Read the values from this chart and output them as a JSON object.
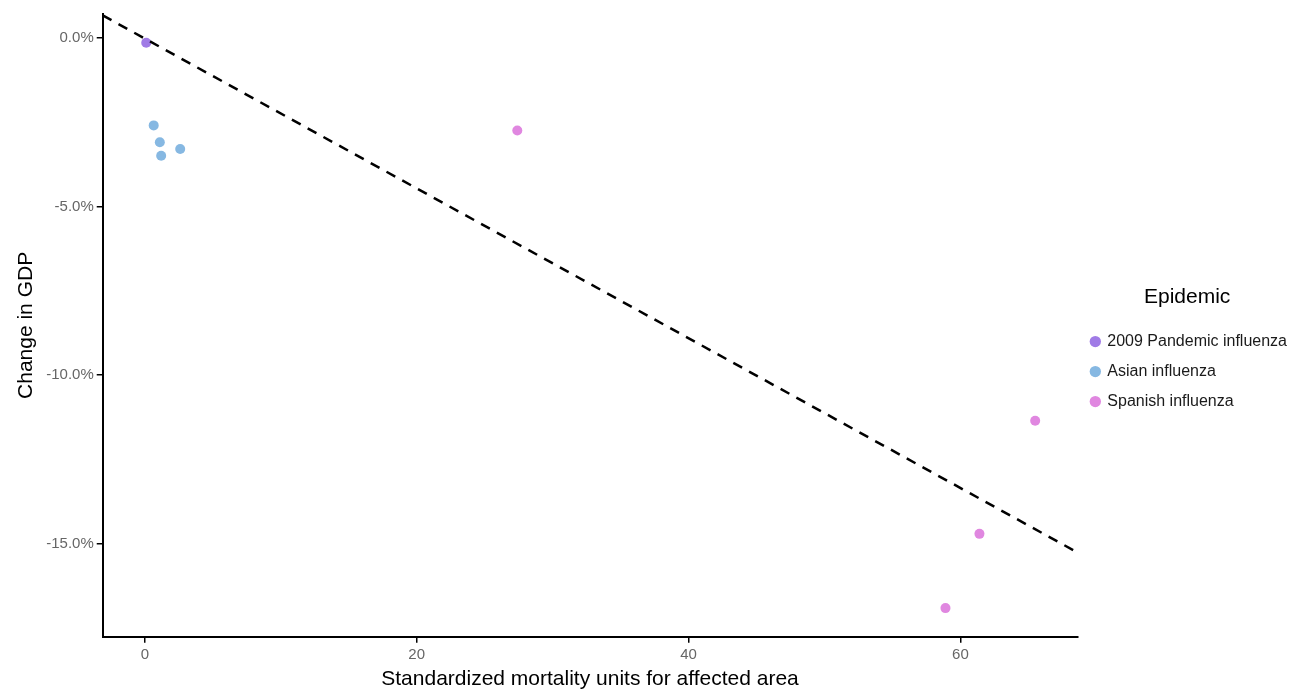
{
  "chart_data": {
    "type": "scatter",
    "xlabel": "Standardized mortality units for affected area",
    "ylabel": "Change in GDP",
    "legend_title": "Epidemic",
    "legend": "right",
    "grid": false,
    "marker": "circle",
    "xlim": [
      -3.1,
      68.6
    ],
    "xticks": [
      0,
      20,
      40,
      60
    ],
    "ylim": [
      -17.75,
      0.7
    ],
    "yticks": [
      {
        "value": 0,
        "label": "0.0%"
      },
      {
        "value": -5,
        "label": "-5.0%"
      },
      {
        "value": -10,
        "label": "-10.0%"
      },
      {
        "value": -15,
        "label": "-15.0%"
      }
    ],
    "series": [
      {
        "name": "2009 Pandemic influenza",
        "color": "#a07be6",
        "x": [
          0.1
        ],
        "values": [
          -0.15
        ]
      },
      {
        "name": "Asian influenza",
        "color": "#86b8e2",
        "x": [
          0.65,
          1.1,
          1.2,
          2.6
        ],
        "values": [
          -2.6,
          -3.1,
          -3.5,
          -3.3
        ]
      },
      {
        "name": "Spanish influenza",
        "color": "#e087e0",
        "x": [
          27.4,
          65.5,
          61.4,
          58.9
        ],
        "values": [
          -2.75,
          -11.35,
          -14.7,
          -16.9
        ]
      },
      {
        "type": "line",
        "color": "#000000",
        "line_style": "dashed",
        "marker": "none",
        "x": [
          -3.1,
          68.6
        ],
        "values": [
          0.66,
          -15.25
        ]
      }
    ]
  }
}
